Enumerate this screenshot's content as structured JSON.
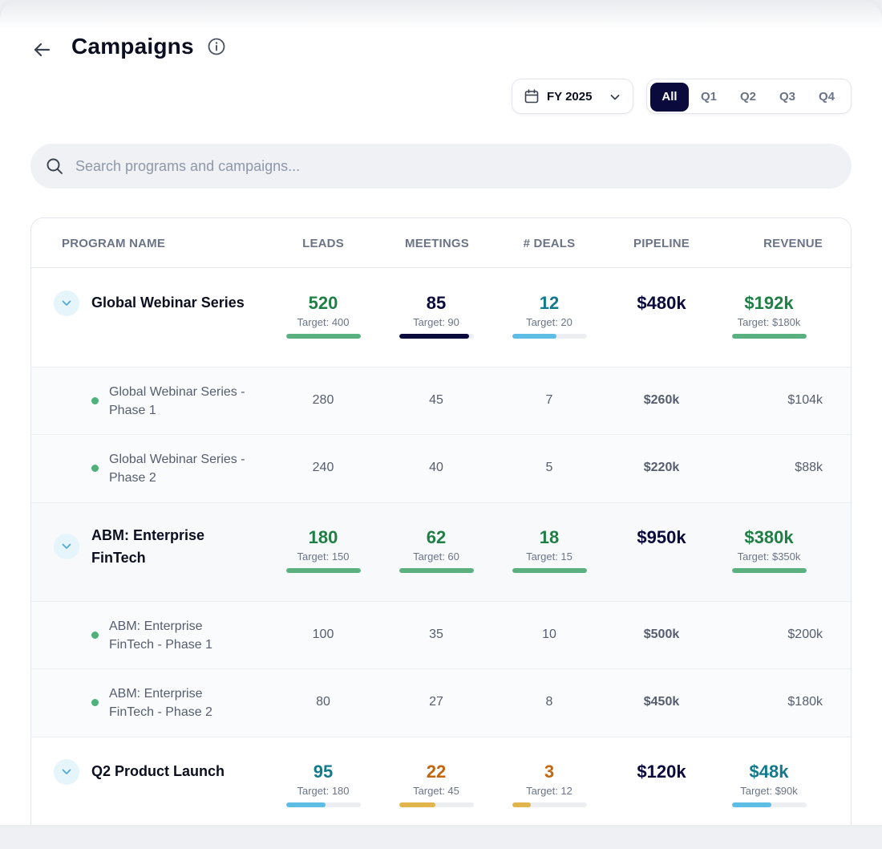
{
  "header": {
    "title": "Campaigns",
    "back_icon": "arrow-left-icon",
    "info_icon": "info-icon"
  },
  "filters": {
    "year_label": "FY 2025",
    "periods": [
      {
        "label": "All",
        "active": true
      },
      {
        "label": "Q1",
        "active": false
      },
      {
        "label": "Q2",
        "active": false
      },
      {
        "label": "Q3",
        "active": false
      },
      {
        "label": "Q4",
        "active": false
      }
    ]
  },
  "search": {
    "placeholder": "Search programs and campaigns..."
  },
  "table": {
    "columns": [
      "PROGRAM NAME",
      "LEADS",
      "MEETINGS",
      "# DEALS",
      "PIPELINE",
      "REVENUE"
    ],
    "programs": [
      {
        "name": "Global Webinar Series",
        "leads": {
          "value": "520",
          "target": "Target: 400",
          "progress": 1.0,
          "tone": "green"
        },
        "meetings": {
          "value": "85",
          "target": "Target: 90",
          "progress": 0.944,
          "tone": "navy"
        },
        "deals": {
          "value": "12",
          "target": "Target: 20",
          "progress": 0.6,
          "tone": "teal"
        },
        "pipeline": "$480k",
        "revenue": {
          "value": "$192k",
          "target": "Target: $180k",
          "progress": 1.0,
          "tone": "green"
        },
        "campaigns": [
          {
            "name": "Global Webinar Series - Phase 1",
            "leads": "280",
            "meetings": "45",
            "deals": "7",
            "pipeline": "$260k",
            "revenue": "$104k"
          },
          {
            "name": "Global Webinar Series - Phase 2",
            "leads": "240",
            "meetings": "40",
            "deals": "5",
            "pipeline": "$220k",
            "revenue": "$88k"
          }
        ]
      },
      {
        "name": "ABM: Enterprise FinTech",
        "leads": {
          "value": "180",
          "target": "Target: 150",
          "progress": 1.0,
          "tone": "green"
        },
        "meetings": {
          "value": "62",
          "target": "Target: 60",
          "progress": 1.0,
          "tone": "green"
        },
        "deals": {
          "value": "18",
          "target": "Target: 15",
          "progress": 1.0,
          "tone": "green"
        },
        "pipeline": "$950k",
        "revenue": {
          "value": "$380k",
          "target": "Target: $350k",
          "progress": 1.0,
          "tone": "green"
        },
        "campaigns": [
          {
            "name": "ABM: Enterprise FinTech - Phase 1",
            "leads": "100",
            "meetings": "35",
            "deals": "10",
            "pipeline": "$500k",
            "revenue": "$200k"
          },
          {
            "name": "ABM: Enterprise FinTech - Phase 2",
            "leads": "80",
            "meetings": "27",
            "deals": "8",
            "pipeline": "$450k",
            "revenue": "$180k"
          }
        ]
      },
      {
        "name": "Q2 Product Launch",
        "leads": {
          "value": "95",
          "target": "Target: 180",
          "progress": 0.528,
          "tone": "teal"
        },
        "meetings": {
          "value": "22",
          "target": "Target: 45",
          "progress": 0.489,
          "tone": "orange"
        },
        "deals": {
          "value": "3",
          "target": "Target: 12",
          "progress": 0.25,
          "tone": "orange"
        },
        "pipeline": "$120k",
        "revenue": {
          "value": "$48k",
          "target": "Target: $90k",
          "progress": 0.533,
          "tone": "teal"
        },
        "campaigns": []
      }
    ]
  },
  "colors": {
    "accent_navy": "#0a0a3c",
    "success_green": "#1f7f45",
    "progress_green": "#5bb07f",
    "progress_blue": "#5ebde4",
    "warning_orange": "#c4660e",
    "progress_yellow": "#e1b54c",
    "info_teal": "#137a8c"
  }
}
